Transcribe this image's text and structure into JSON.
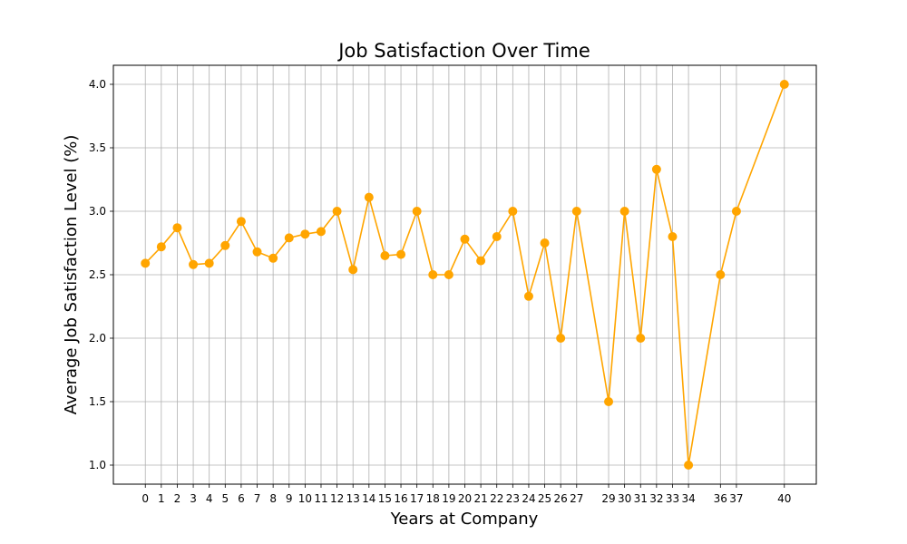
{
  "chart_data": {
    "type": "line",
    "title": "Job Satisfaction Over Time",
    "xlabel": "Years at Company",
    "ylabel": "Average Job Satisfaction Level (%)",
    "x": [
      0,
      1,
      2,
      3,
      4,
      5,
      6,
      7,
      8,
      9,
      10,
      11,
      12,
      13,
      14,
      15,
      16,
      17,
      18,
      19,
      20,
      21,
      22,
      23,
      24,
      25,
      26,
      27,
      29,
      30,
      31,
      32,
      33,
      34,
      36,
      37,
      40
    ],
    "series": [
      {
        "values": [
          2.59,
          2.72,
          2.87,
          2.58,
          2.59,
          2.73,
          2.92,
          2.68,
          2.63,
          2.79,
          2.82,
          2.84,
          3.0,
          2.54,
          3.11,
          2.65,
          2.66,
          3.0,
          2.5,
          2.5,
          2.78,
          2.61,
          2.8,
          3.0,
          2.33,
          2.75,
          2.0,
          3.0,
          1.5,
          3.0,
          2.0,
          3.33,
          2.8,
          1.0,
          2.5,
          3.0,
          4.0
        ],
        "color": "#ffa500"
      }
    ],
    "xticks": [
      "0",
      "1",
      "2",
      "3",
      "4",
      "5",
      "6",
      "7",
      "8",
      "9",
      "10",
      "11",
      "12",
      "13",
      "14",
      "15",
      "16",
      "17",
      "18",
      "19",
      "20",
      "21",
      "22",
      "23",
      "24",
      "25",
      "26",
      "27",
      "29",
      "30",
      "31",
      "32",
      "33",
      "34",
      "36",
      "37",
      "40"
    ],
    "yticks": [
      "1.0",
      "1.5",
      "2.0",
      "2.5",
      "3.0",
      "3.5",
      "4.0"
    ],
    "ylim": [
      0.85,
      4.15
    ],
    "xlim": [
      -2,
      42
    ],
    "grid": true,
    "marker": "circle"
  }
}
